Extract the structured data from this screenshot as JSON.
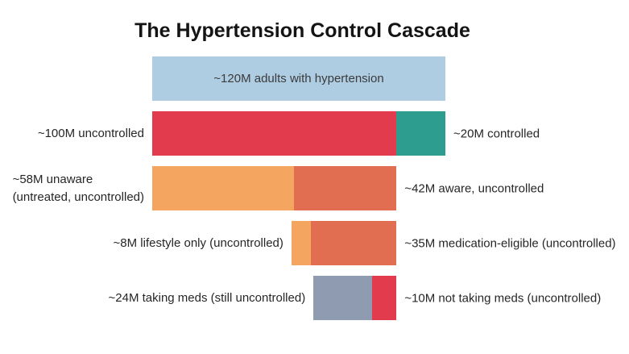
{
  "title": "The Hypertension Control Cascade",
  "colors": {
    "blue": "#aecde3",
    "red": "#e23b4e",
    "teal": "#2d9d8f",
    "light_orange": "#f4a660",
    "dark_orange": "#e26e52",
    "gray_blue": "#8f9bb0",
    "title_text": "#141414",
    "label_text": "#262626",
    "bar_text": "#3b3b3b",
    "background": "#ffffff"
  },
  "chart_data": {
    "type": "bar",
    "subtype": "horizontal-stacked-cascade",
    "title": "The Hypertension Control Cascade",
    "unit": "millions of adults (M)",
    "scale_total_m": 120,
    "legend": "none",
    "grid": false,
    "rows": [
      {
        "inside_label": "~120M adults with hypertension",
        "left_label": "",
        "right_label": "",
        "align": "left",
        "segments": [
          {
            "name": "adults-with-hypertension",
            "value": 120,
            "color_key": "blue"
          }
        ]
      },
      {
        "inside_label": "",
        "left_label": "~100M uncontrolled",
        "right_label": "~20M controlled",
        "align": "left",
        "segments": [
          {
            "name": "uncontrolled",
            "value": 100,
            "color_key": "red"
          },
          {
            "name": "controlled",
            "value": 20,
            "color_key": "teal"
          }
        ]
      },
      {
        "inside_label": "",
        "left_label": "~58M unaware\n(untreated, uncontrolled)",
        "right_label": "~42M aware, uncontrolled",
        "align": "left",
        "segments": [
          {
            "name": "unaware-untreated-uncontrolled",
            "value": 58,
            "color_key": "light_orange"
          },
          {
            "name": "aware-uncontrolled",
            "value": 42,
            "color_key": "dark_orange"
          }
        ]
      },
      {
        "inside_label": "",
        "left_label": "~8M lifestyle only (uncontrolled)",
        "right_label": "~35M medication-eligible (uncontrolled)",
        "align": "right",
        "right_anchor": 100,
        "segments": [
          {
            "name": "lifestyle-only-uncontrolled",
            "value": 8,
            "color_key": "light_orange"
          },
          {
            "name": "medication-eligible-uncontrolled",
            "value": 35,
            "color_key": "dark_orange"
          }
        ]
      },
      {
        "inside_label": "",
        "left_label": "~24M taking meds (still uncontrolled)",
        "right_label": "~10M not taking meds (uncontrolled)",
        "align": "right",
        "right_anchor": 100,
        "segments": [
          {
            "name": "taking-meds-still-uncontrolled",
            "value": 24,
            "color_key": "gray_blue"
          },
          {
            "name": "not-taking-meds-uncontrolled",
            "value": 10,
            "color_key": "red"
          }
        ]
      }
    ]
  }
}
